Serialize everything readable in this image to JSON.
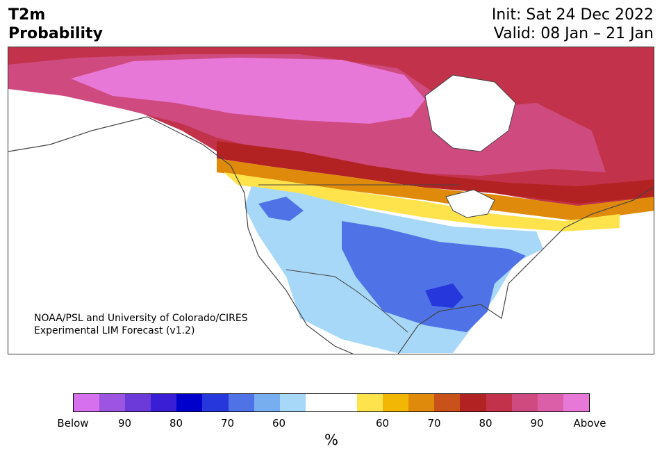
{
  "title": {
    "left_line1": "T2m",
    "left_line2": "Probability",
    "right_line1": "Init: Sat 24 Dec 2022",
    "right_line2": "Valid: 08 Jan – 21 Jan"
  },
  "credit": {
    "line1": "NOAA/PSL and University of Colorado/CIRES",
    "line2": "Experimental LIM Forecast (v1.2)"
  },
  "colorbar": {
    "unit": "%",
    "colors": [
      "#d670ec",
      "#9b55e0",
      "#6b3ad8",
      "#3a1ed6",
      "#0000cc",
      "#2637db",
      "#4f72e6",
      "#77aef0",
      "#a8d8f8",
      "#ffffff",
      "#ffffff",
      "#ffe34d",
      "#f2b705",
      "#e08a0b",
      "#c9521a",
      "#b32222",
      "#c2324a",
      "#cf4a7e",
      "#db5fa8",
      "#e878d8"
    ],
    "tick_labels": [
      "Below",
      "90",
      "80",
      "70",
      "60",
      "60",
      "70",
      "80",
      "90",
      "Above"
    ]
  },
  "map": {
    "region": "North America",
    "legend_colors": {
      "above_high": "#e878d8",
      "above_mid": "#cf4a7e",
      "above_red": "#b32222",
      "orange": "#e08a0b",
      "yellow": "#ffe34d",
      "light_blue": "#a8d8f8",
      "blue": "#4f72e6",
      "dark_blue": "#2637db"
    }
  }
}
